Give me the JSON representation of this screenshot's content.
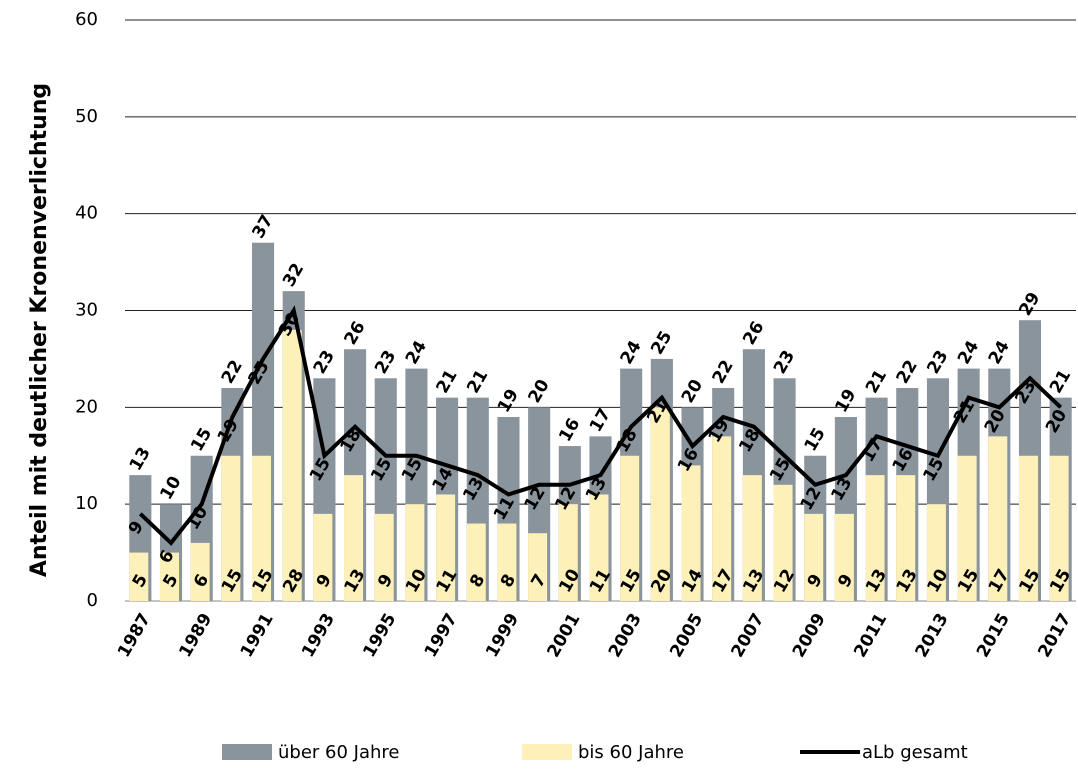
{
  "chart_data": {
    "type": "bar_line",
    "y_label": "Anteil mit deutlicher Kronenverlichtung",
    "categories": [
      "1987",
      null,
      "1989",
      null,
      "1991",
      null,
      "1993",
      null,
      "1995",
      null,
      "1997",
      null,
      "1999",
      null,
      "2001",
      null,
      "2003",
      null,
      "2005",
      null,
      "2007",
      null,
      "2009",
      null,
      "2011",
      null,
      "2013",
      null,
      "2015",
      null,
      "2017"
    ],
    "series": [
      {
        "name": "über 60 Jahre",
        "color": "#8a949c",
        "kind": "bar",
        "values": [
          13,
          10,
          15,
          22,
          37,
          32,
          23,
          26,
          23,
          24,
          21,
          21,
          19,
          20,
          16,
          17,
          24,
          25,
          20,
          22,
          26,
          23,
          15,
          19,
          21,
          22,
          23,
          24,
          24,
          29,
          21
        ]
      },
      {
        "name": "bis 60 Jahre",
        "color": "#fdf0b8",
        "kind": "bar",
        "values": [
          5,
          5,
          6,
          15,
          15,
          28,
          9,
          13,
          9,
          10,
          11,
          8,
          8,
          7,
          10,
          11,
          15,
          20,
          14,
          17,
          13,
          12,
          9,
          9,
          13,
          13,
          10,
          15,
          17,
          15,
          15
        ]
      },
      {
        "name": "aLb gesamt",
        "color": "#000000",
        "kind": "line",
        "values": [
          9,
          6,
          10,
          19,
          25,
          30,
          15,
          18,
          15,
          15,
          14,
          13,
          11,
          12,
          12,
          13,
          18,
          21,
          16,
          19,
          18,
          15,
          12,
          13,
          17,
          16,
          15,
          21,
          20,
          23,
          20
        ]
      }
    ],
    "ylim": [
      0,
      60
    ],
    "yticks": [
      0,
      10,
      20,
      30,
      40,
      50,
      60
    ],
    "grid": true
  }
}
